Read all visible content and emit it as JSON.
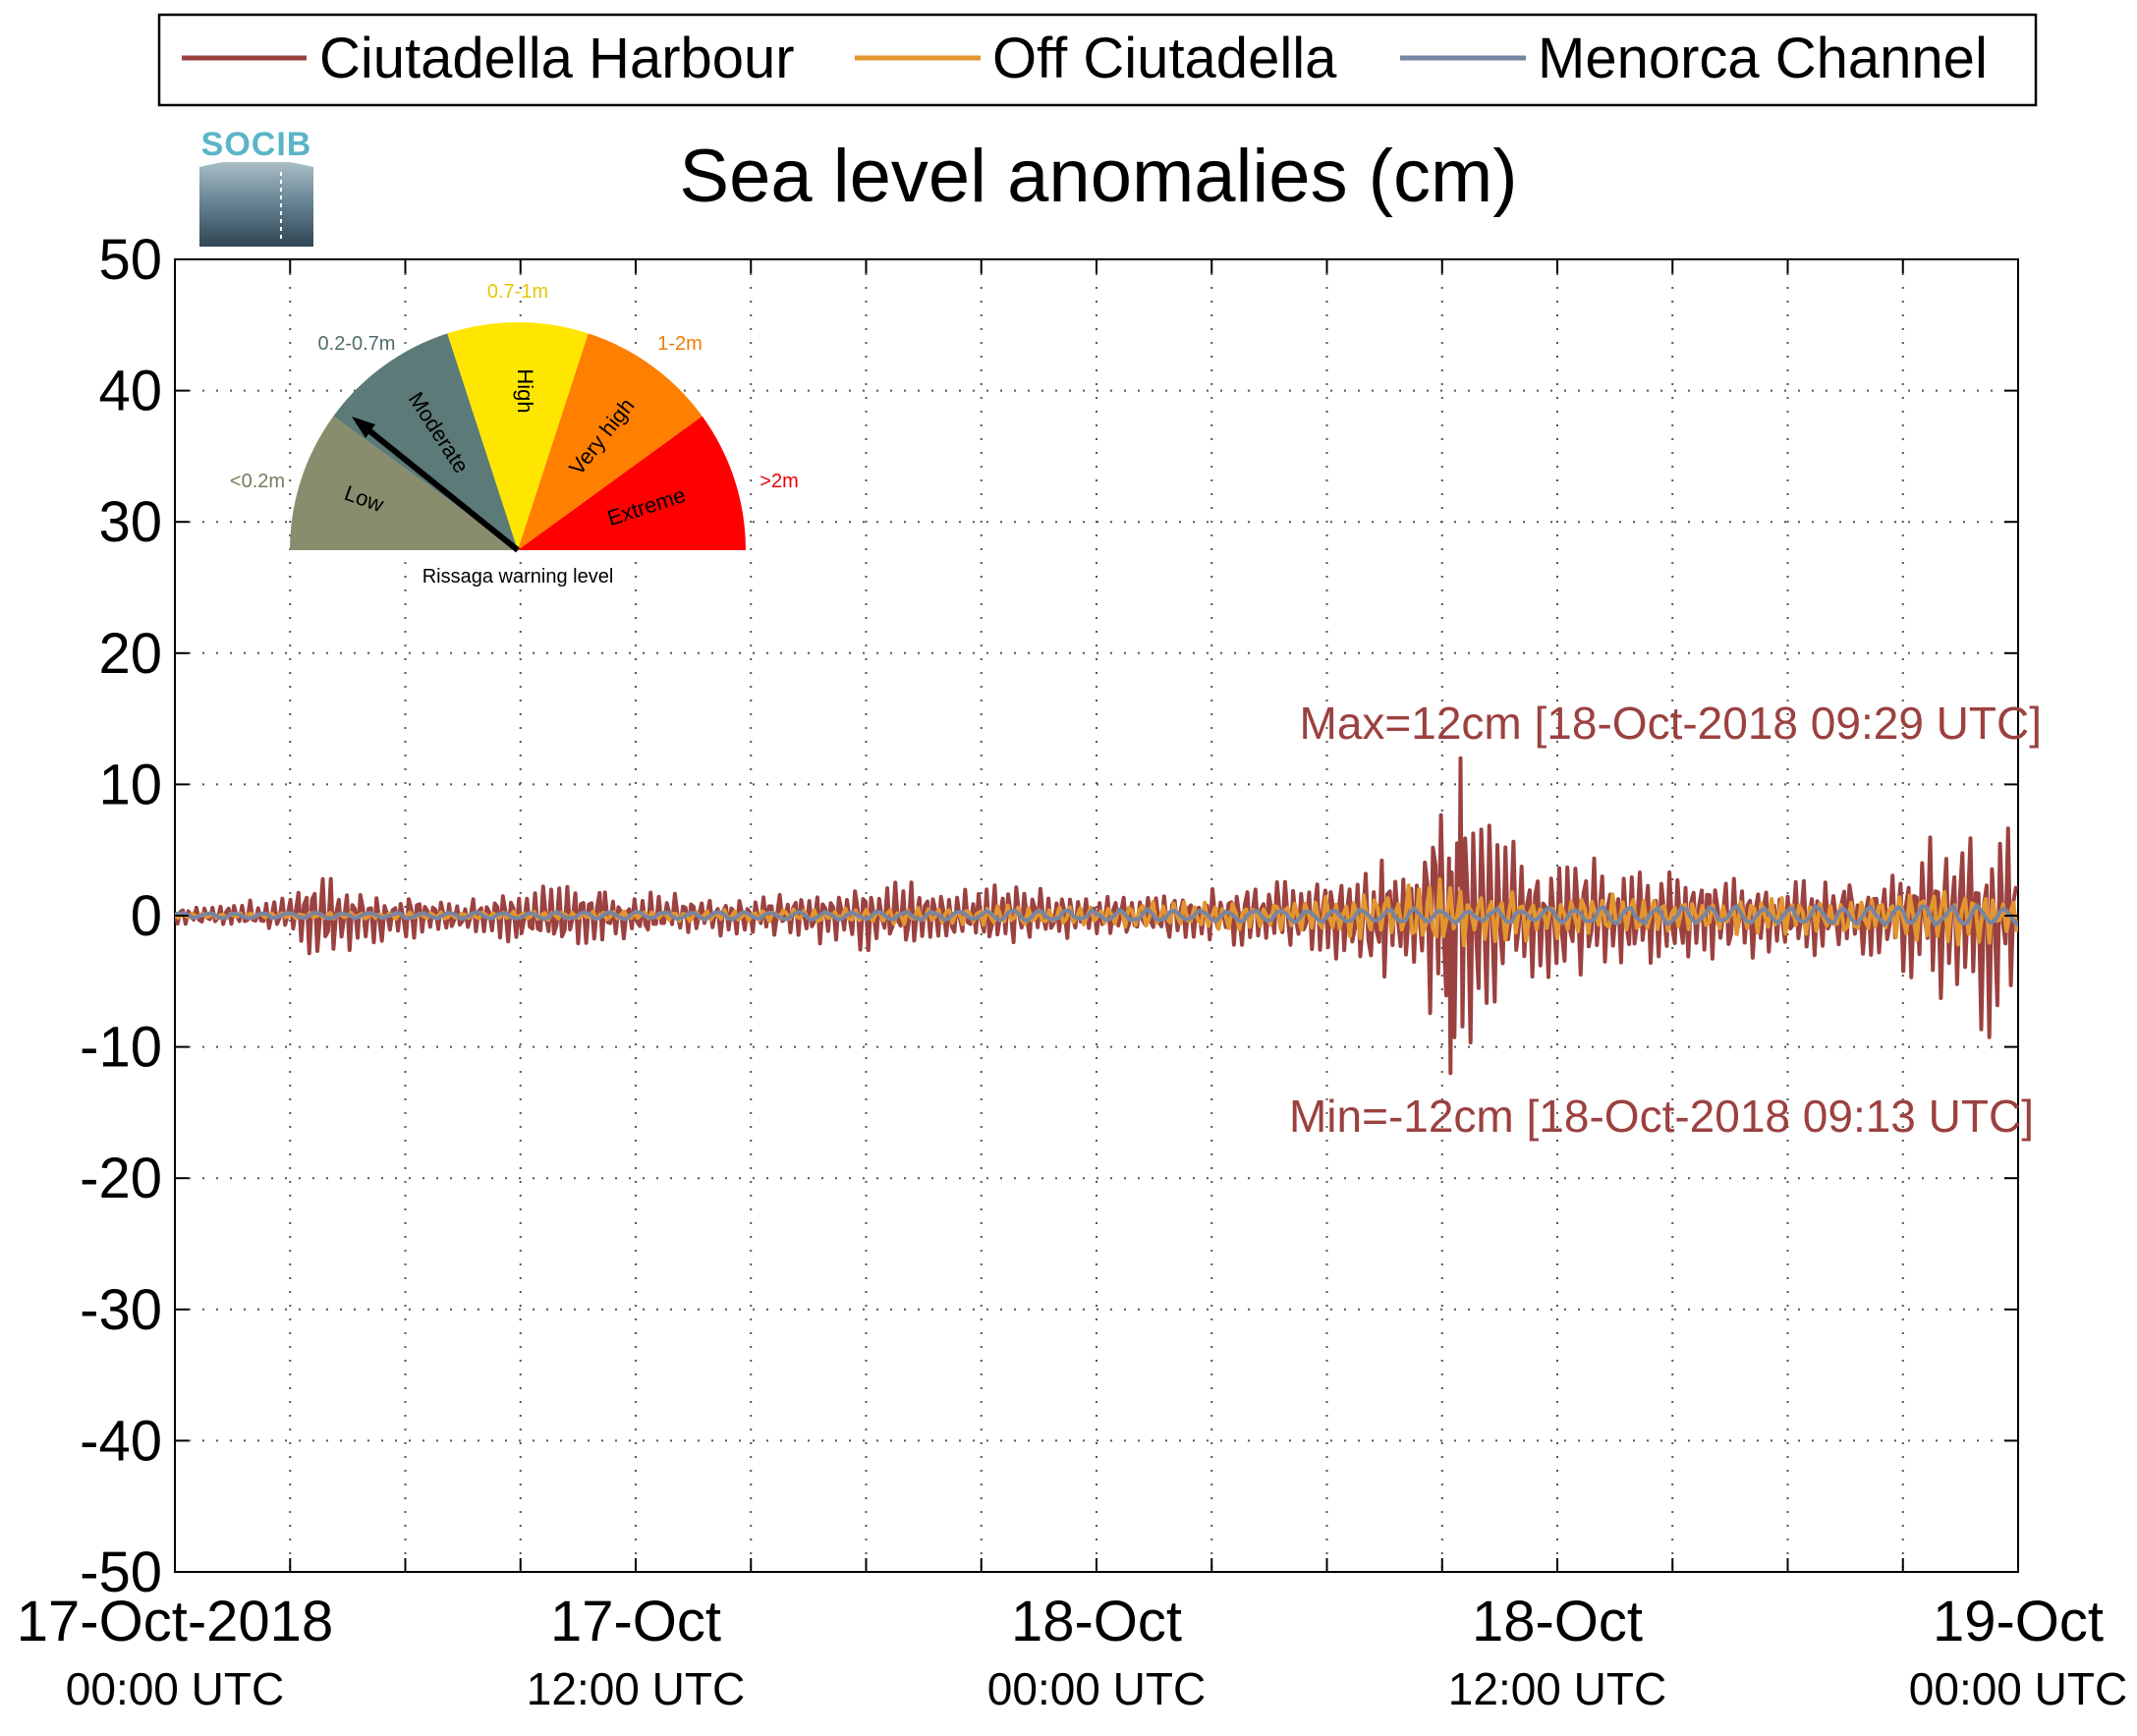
{
  "logo": {
    "text": "SOCIB"
  },
  "colors": {
    "harbour": "#9B4140",
    "offshore": "#E3962F",
    "channel": "#7885A1",
    "grid": "#555555",
    "low": "#8A8D6D",
    "moderate": "#5B7A78",
    "high": "#FFE600",
    "very_high": "#FF7F00",
    "extreme": "#FF0000",
    "label_low": "#7A7A5C",
    "label_moderate": "#4E6E6C",
    "label_high": "#E6C800",
    "label_very_high": "#F07A00",
    "label_extreme": "#E80000"
  },
  "gauge": {
    "caption": "Rissaga warning level",
    "segments": [
      {
        "name": "Low",
        "range": "<0.2m"
      },
      {
        "name": "Moderate",
        "range": "0.2-0.7m"
      },
      {
        "name": "High",
        "range": "0.7-1m"
      },
      {
        "name": "Very high",
        "range": "1-2m"
      },
      {
        "name": "Extreme",
        "range": ">2m"
      }
    ],
    "needle_level": "Moderate"
  },
  "chart_data": {
    "type": "line",
    "title": "Sea level anomalies (cm)",
    "xlabel": "",
    "ylabel": "",
    "ylim": [
      -50,
      50
    ],
    "xlim_hours": [
      0,
      48
    ],
    "x_unit": "hours since 17-Oct-2018 00:00 UTC",
    "yticks": [
      "50",
      "40",
      "30",
      "20",
      "10",
      "0",
      "-10",
      "-20",
      "-30",
      "-40",
      "-50"
    ],
    "xticks": [
      {
        "hour": 0,
        "line1": "17-Oct-2018",
        "line2": "00:00 UTC"
      },
      {
        "hour": 12,
        "line1": "17-Oct",
        "line2": "12:00 UTC"
      },
      {
        "hour": 24,
        "line1": "18-Oct",
        "line2": "00:00 UTC"
      },
      {
        "hour": 36,
        "line1": "18-Oct",
        "line2": "12:00 UTC"
      },
      {
        "hour": 48,
        "line1": "19-Oct",
        "line2": "00:00 UTC"
      }
    ],
    "grid": true,
    "legend_position": "top",
    "series": [
      {
        "name": "Ciutadella Harbour",
        "color": "#9B4140",
        "envelope_hours": [
          0,
          3,
          3.5,
          6,
          8,
          9.5,
          12,
          15,
          18,
          20,
          22,
          24,
          26,
          30,
          31.5,
          32.5,
          33,
          33.5,
          34,
          35,
          38,
          40,
          44,
          46,
          47.2,
          48
        ],
        "envelope_cm": [
          0.6,
          1.5,
          3.5,
          1.8,
          1.3,
          3.0,
          2.0,
          1.4,
          3.0,
          2.5,
          2.5,
          1.6,
          2.0,
          3.5,
          5.0,
          5.5,
          11.0,
          12.0,
          9.5,
          5.5,
          4.0,
          3.5,
          3.0,
          6.5,
          10.0,
          8.0
        ]
      },
      {
        "name": "Off Ciutadella",
        "color": "#E3962F",
        "envelope_hours": [
          0,
          6,
          12,
          18,
          24,
          28,
          30,
          33,
          34.5,
          40,
          44,
          46,
          48
        ],
        "envelope_cm": [
          0.2,
          0.3,
          0.4,
          0.6,
          1.0,
          1.4,
          1.6,
          2.8,
          2.0,
          1.5,
          1.6,
          2.4,
          2.0
        ]
      },
      {
        "name": "Menorca Channel",
        "color": "#7885A1",
        "envelope_hours": [
          0,
          12,
          24,
          34,
          48
        ],
        "envelope_cm": [
          0.3,
          0.4,
          0.6,
          0.8,
          1.1
        ]
      }
    ],
    "annotations": [
      {
        "text": "Max=12cm [18-Oct-2018 09:29 UTC]",
        "value_cm": 12,
        "hour": 33.48
      },
      {
        "text": "Min=-12cm [18-Oct-2018 09:13 UTC]",
        "value_cm": -12,
        "hour": 33.22
      }
    ]
  }
}
